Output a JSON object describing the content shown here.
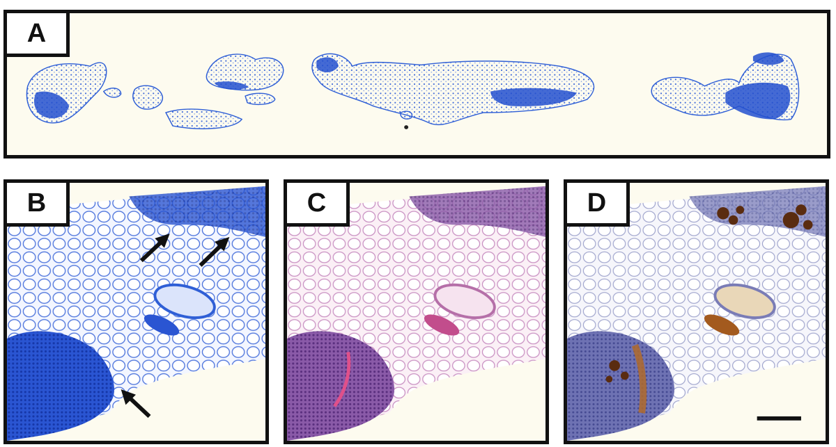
{
  "panels": [
    {
      "id": "A",
      "stain": "blue"
    },
    {
      "id": "B",
      "stain": "blue"
    },
    {
      "id": "C",
      "stain": "pink-purple"
    },
    {
      "id": "D",
      "stain": "brown-on-blue"
    }
  ],
  "colors": {
    "background": "#fdfbef",
    "blue_stain": "#2f5fd6",
    "pink_stain": "#c990c2",
    "purple_nuclei": "#6b3f8f",
    "brown_stain": "#8a4a1c",
    "arrow": "#111111",
    "scale_bar": "#111111"
  },
  "annotations": {
    "arrows_panel_b": 3,
    "scale_bar_panel": "D"
  }
}
